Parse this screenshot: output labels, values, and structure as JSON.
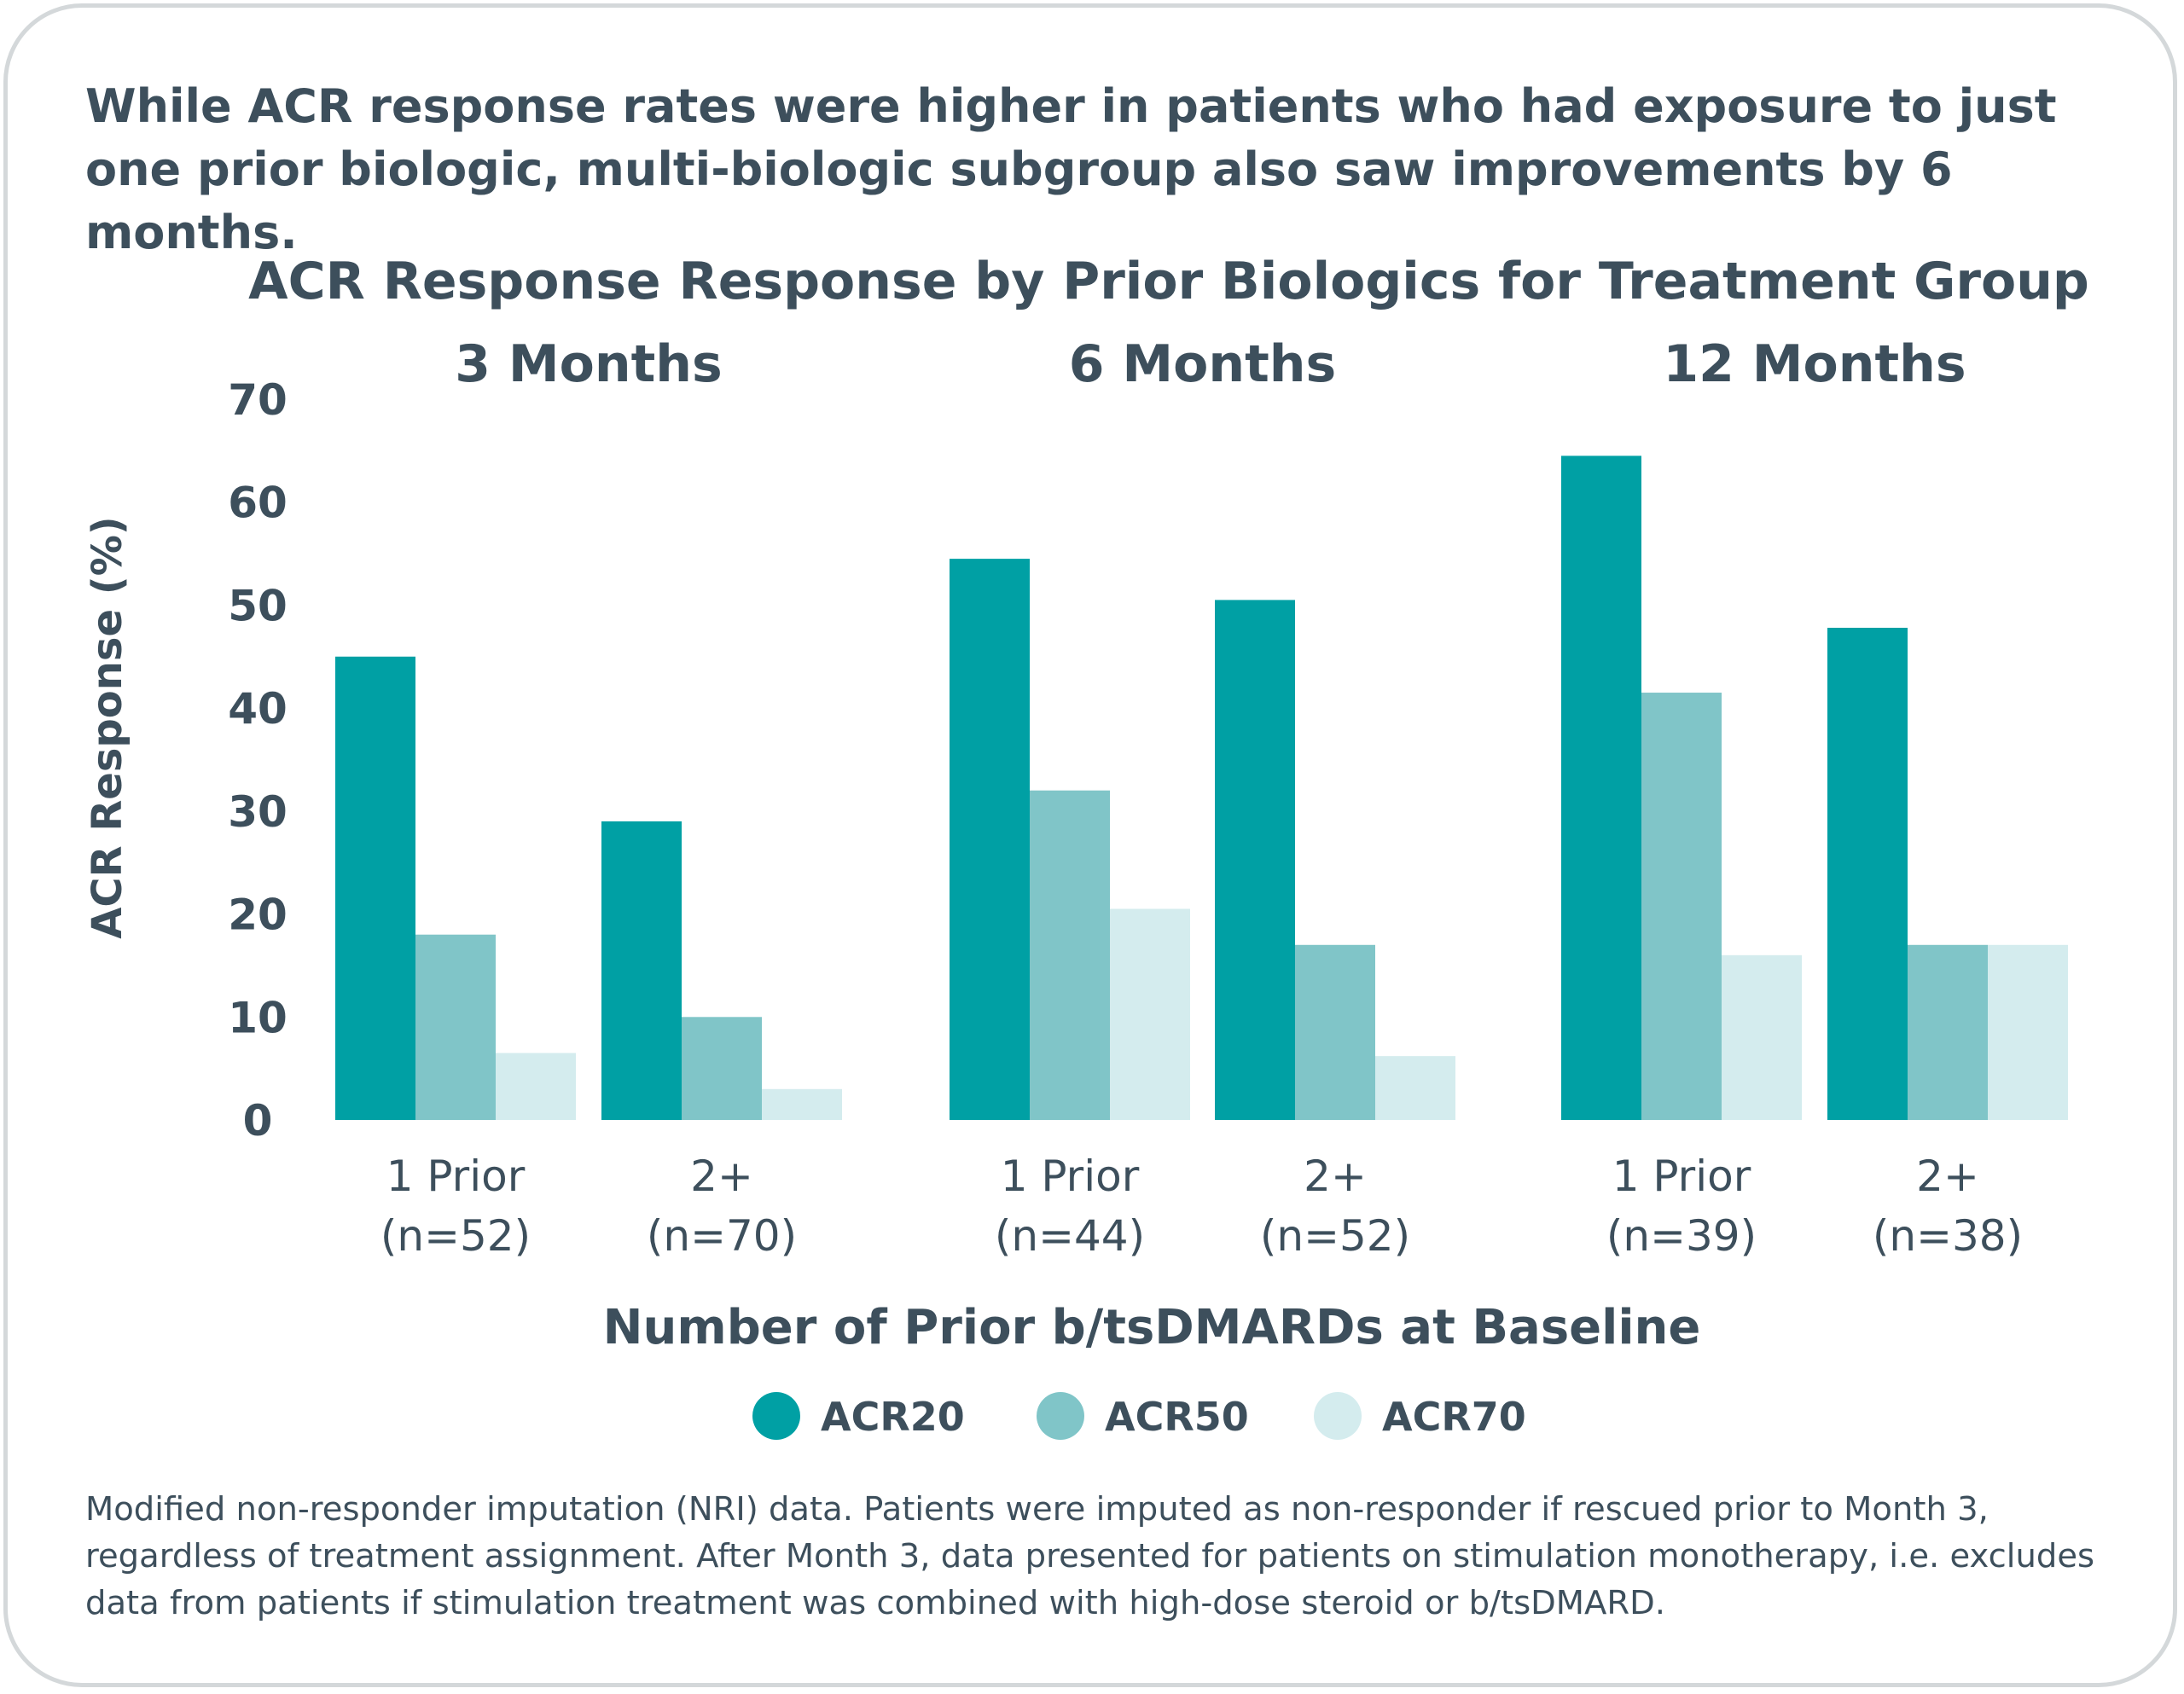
{
  "headline": "While ACR response rates were higher in patients who had exposure to just one prior biologic, multi-biologic subgroup also saw improvements by 6 months.",
  "footnote": "Modified non-responder imputation (NRI) data. Patients were imputed as non-responder if rescued prior to Month 3, regardless of treatment assignment. After Month 3, data presented for patients on stimulation monotherapy, i.e. excludes data from patients if stimulation treatment was combined with high-dose steroid or b/tsDMARD.",
  "chart_data": {
    "type": "bar",
    "title": "ACR Response Response by Prior Biologics for Treatment Group",
    "xlabel": "Number of Prior b/tsDMARDs at Baseline",
    "ylabel": "ACR Response (%)",
    "ylim": [
      0,
      70
    ],
    "yticks": [
      0,
      10,
      20,
      30,
      40,
      50,
      60,
      70
    ],
    "grid": false,
    "legend_position": "bottom",
    "series_names": [
      "ACR20",
      "ACR50",
      "ACR70"
    ],
    "colors": [
      "#00a0a4",
      "#80c5c8",
      "#d4ecee"
    ],
    "panels": [
      {
        "title": "3 Months",
        "groups": [
          {
            "line1": "1 Prior",
            "line2": "(n=52)",
            "values": [
              45,
              18,
              6.5
            ]
          },
          {
            "line1": "2+",
            "line2": "(n=70)",
            "values": [
              29,
              10,
              3
            ]
          }
        ]
      },
      {
        "title": "6 Months",
        "groups": [
          {
            "line1": "1 Prior",
            "line2": "(n=44)",
            "values": [
              54.5,
              32,
              20.5
            ]
          },
          {
            "line1": "2+",
            "line2": "(n=52)",
            "values": [
              50.5,
              17,
              6.2
            ]
          }
        ]
      },
      {
        "title": "12 Months",
        "groups": [
          {
            "line1": "1 Prior",
            "line2": "(n=39)",
            "values": [
              64.5,
              41.5,
              16
            ]
          },
          {
            "line1": "2+",
            "line2": "(n=38)",
            "values": [
              47.8,
              17,
              17
            ]
          }
        ]
      }
    ]
  }
}
